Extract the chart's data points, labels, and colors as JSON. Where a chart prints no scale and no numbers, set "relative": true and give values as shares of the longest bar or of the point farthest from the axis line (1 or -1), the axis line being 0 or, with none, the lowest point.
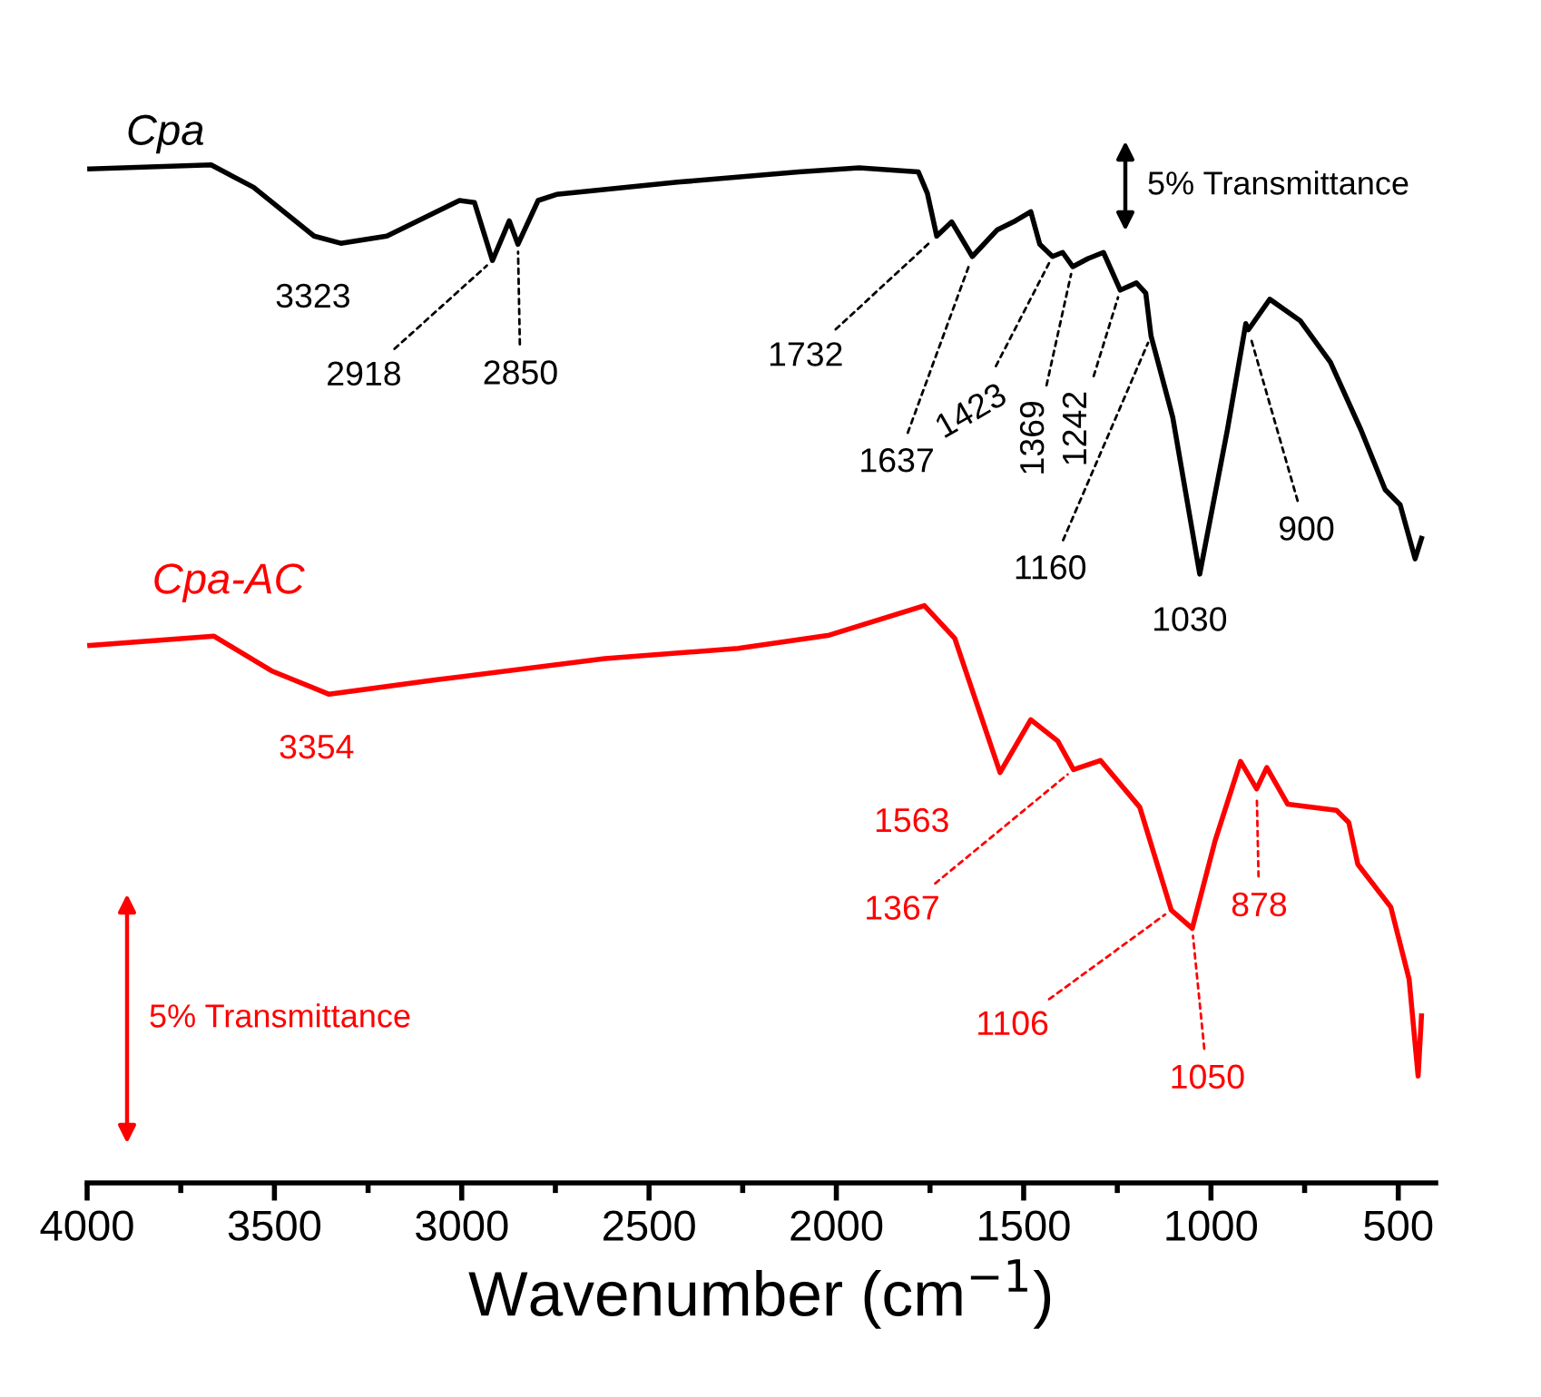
{
  "chart_data": {
    "type": "line",
    "relative": true,
    "xlabel": "Wavenumber (cm$^{−1}$)",
    "xlim": [
      4000,
      400
    ],
    "xticks": [
      4000,
      {
        "value": 3750,
        "label": null
      },
      3500,
      {
        "value": 3250,
        "label": null
      },
      3000,
      {
        "value": 2750,
        "label": null
      },
      2500,
      {
        "value": 2250,
        "label": null
      },
      2000,
      {
        "value": 1750,
        "label": null
      },
      1500,
      {
        "value": 1250,
        "label": null
      },
      1000,
      {
        "value": 750,
        "label": null
      },
      500
    ],
    "tick_labels": "x",
    "grid": false,
    "legend": false,
    "marker": "none",
    "line_style": "solid",
    "series": [
      {
        "name": "Cpa",
        "color": "#000000",
        "x": [
          3993,
          3669,
          3556,
          3394,
          3323,
          3200,
          3006,
          2966,
          2918,
          2873,
          2850,
          2796,
          2747,
          2424,
          2100,
          1939,
          1781,
          1757,
          1732,
          1692,
          1637,
          1571,
          1522,
          1481,
          1457,
          1423,
          1396,
          1369,
          1328,
          1287,
          1242,
          1199,
          1174,
          1160,
          1102,
          1030,
          956,
          907,
          900,
          843,
          762,
          681,
          600,
          535,
          495,
          455,
          438
        ],
        "values": [
          0.996,
          1.0,
          0.978,
          0.93,
          0.923,
          0.93,
          0.965,
          0.963,
          0.906,
          0.945,
          0.922,
          0.965,
          0.971,
          0.983,
          0.993,
          0.997,
          0.993,
          0.972,
          0.93,
          0.944,
          0.91,
          0.936,
          0.945,
          0.954,
          0.922,
          0.91,
          0.914,
          0.9,
          0.908,
          0.914,
          0.877,
          0.884,
          0.874,
          0.832,
          0.752,
          0.598,
          0.74,
          0.844,
          0.838,
          0.868,
          0.847,
          0.806,
          0.74,
          0.681,
          0.666,
          0.613,
          0.633
        ]
      },
      {
        "name": "Cpa-AC",
        "color": "#ff0000",
        "x": [
          3993,
          3661,
          3508,
          3354,
          3071,
          2618,
          2262,
          2019,
          1765,
          1684,
          1563,
          1481,
          1409,
          1367,
          1295,
          1190,
          1106,
          1050,
          989,
          921,
          878,
          851,
          795,
          665,
          632,
          608,
          520,
          471,
          447,
          438
        ],
        "values": [
          0.528,
          0.537,
          0.503,
          0.48,
          0.494,
          0.515,
          0.525,
          0.538,
          0.567,
          0.535,
          0.403,
          0.455,
          0.434,
          0.406,
          0.415,
          0.369,
          0.268,
          0.25,
          0.336,
          0.414,
          0.387,
          0.408,
          0.372,
          0.366,
          0.354,
          0.313,
          0.271,
          0.2,
          0.105,
          0.164
        ]
      }
    ],
    "annotations": [
      "5% Transmittance",
      "5% Transmittance",
      {
        "text": "3323",
        "x": 3323,
        "y": 0.923
      },
      {
        "text": "2918",
        "x": 2918,
        "y": 0.906
      },
      {
        "text": "2850",
        "x": 2850,
        "y": 0.922
      },
      {
        "text": "1732",
        "x": 1732,
        "y": 0.93
      },
      {
        "text": "1637",
        "x": 1637,
        "y": 0.91
      },
      {
        "text": "1423",
        "x": 1423,
        "y": 0.91
      },
      {
        "text": "1369",
        "x": 1369,
        "y": 0.9
      },
      {
        "text": "1242",
        "x": 1242,
        "y": 0.877
      },
      {
        "text": "1160",
        "x": 1160,
        "y": 0.832
      },
      {
        "text": "1030",
        "x": 1030,
        "y": 0.598
      },
      {
        "text": "900",
        "x": 900,
        "y": 0.838
      },
      {
        "text": "3354",
        "x": 3354,
        "y": 0.48
      },
      {
        "text": "1563",
        "x": 1563,
        "y": 0.403
      },
      {
        "text": "1367",
        "x": 1367,
        "y": 0.406
      },
      {
        "text": "1106",
        "x": 1106,
        "y": 0.268
      },
      {
        "text": "1050",
        "x": 1050,
        "y": 0.25
      },
      {
        "text": "878",
        "x": 878,
        "y": 0.387
      }
    ]
  }
}
